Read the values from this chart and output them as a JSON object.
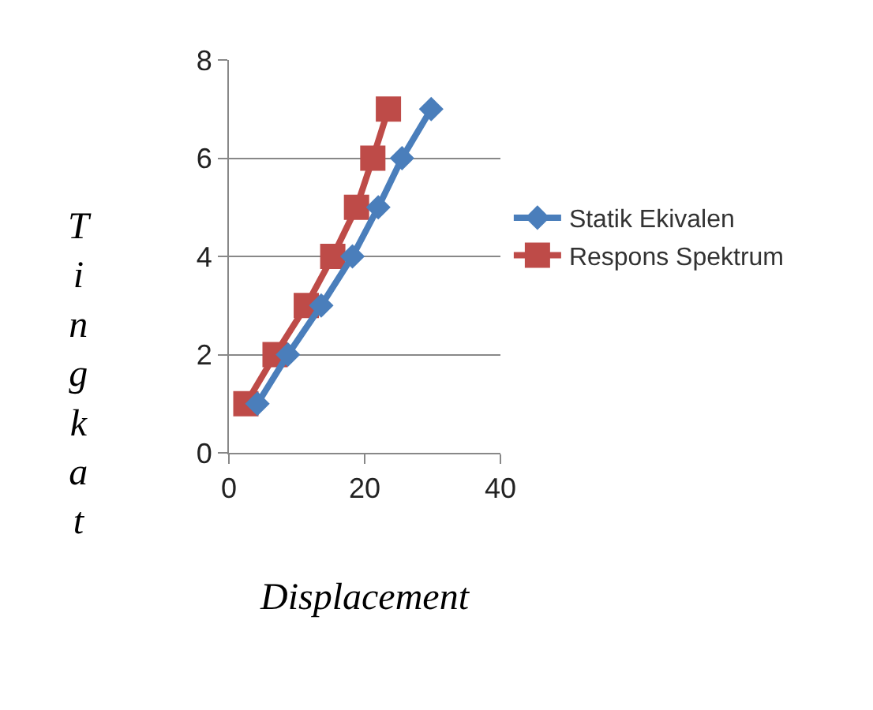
{
  "chart_data": {
    "type": "line",
    "xlabel": "Displacement",
    "ylabel": "Tingkat",
    "xlim": [
      0,
      40
    ],
    "xticks": [
      0,
      20,
      40
    ],
    "ylim": [
      0,
      8
    ],
    "yticks": [
      0,
      2,
      4,
      6,
      8
    ],
    "grid": "y",
    "legend": "right",
    "series": [
      {
        "name": "Statik Ekivalen",
        "color": "#4a7ebb",
        "marker": "diamond",
        "x": [
          4.2,
          8.7,
          13.6,
          18.2,
          22,
          25.5,
          29.8
        ],
        "values": [
          1,
          2,
          3,
          4,
          5,
          6,
          7
        ]
      },
      {
        "name": "Respons Spektrum",
        "color": "#be4b48",
        "marker": "square",
        "x": [
          2.5,
          6.8,
          11.4,
          15.3,
          18.8,
          21.2,
          23.5
        ],
        "values": [
          1,
          2,
          3,
          4,
          5,
          6,
          7
        ]
      }
    ]
  }
}
